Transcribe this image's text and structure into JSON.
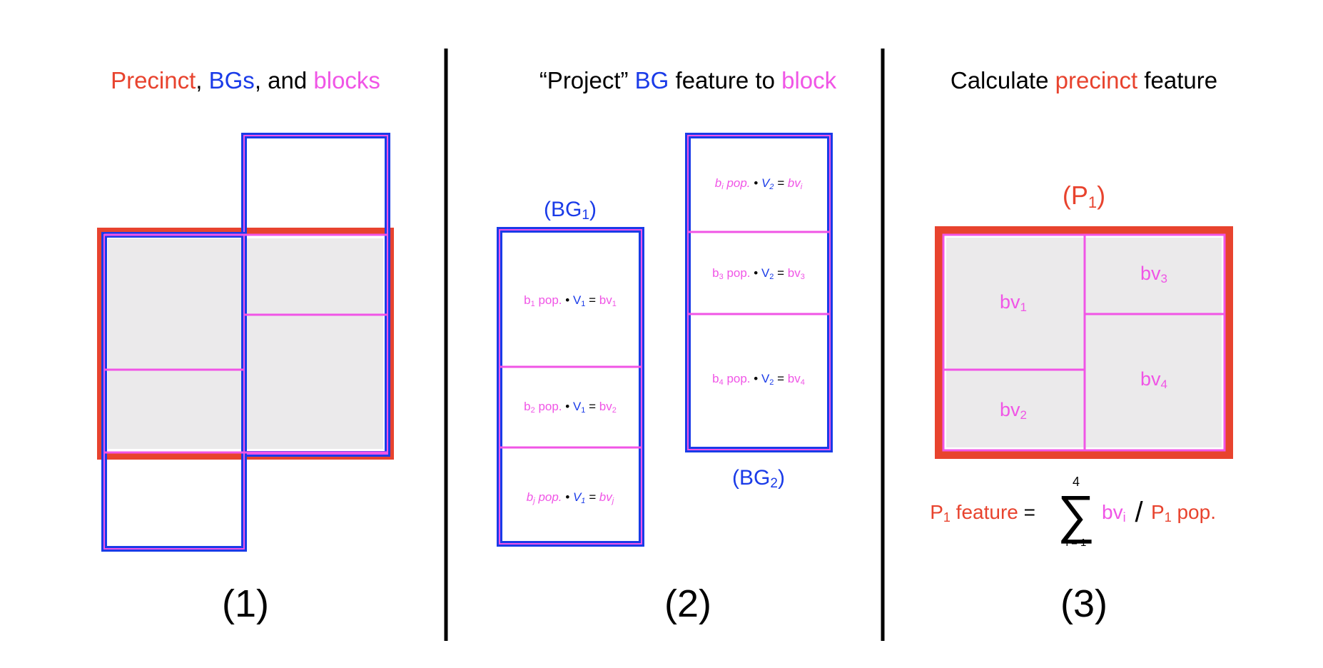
{
  "colors": {
    "precinct": "#E8432E",
    "bg": "#1A3BE8",
    "block": "#F055E6",
    "black": "#000000",
    "fill": "#EBEAEB"
  },
  "panel1": {
    "title": [
      {
        "text": "Precinct",
        "color": "precinct"
      },
      {
        "text": ", ",
        "color": "black"
      },
      {
        "text": "BGs",
        "color": "bg"
      },
      {
        "text": ", and ",
        "color": "black"
      },
      {
        "text": "blocks",
        "color": "block"
      }
    ],
    "number": "(1)"
  },
  "panel2": {
    "title": [
      {
        "text": "“Project” ",
        "color": "black"
      },
      {
        "text": "BG",
        "color": "bg"
      },
      {
        "text": " feature to ",
        "color": "black"
      },
      {
        "text": "block",
        "color": "block"
      }
    ],
    "bg1_label": {
      "base": "(BG",
      "sub": "1",
      "close": ")"
    },
    "bg2_label": {
      "base": "(BG",
      "sub": "2",
      "close": ")"
    },
    "bg1_rows": [
      {
        "b": "b",
        "bsub": "1",
        "pop": " pop.",
        "dot": " • ",
        "v": "V",
        "vsub": "1",
        "eq": " = ",
        "bv": "bv",
        "bvsub": "1",
        "italic": false
      },
      {
        "b": "b",
        "bsub": "2",
        "pop": " pop.",
        "dot": " • ",
        "v": "V",
        "vsub": "1",
        "eq": " = ",
        "bv": "bv",
        "bvsub": "2",
        "italic": false
      },
      {
        "b": "b",
        "bsub": "j",
        "pop": " pop.",
        "dot": " • ",
        "v": "V",
        "vsub": "1",
        "eq": " = ",
        "bv": "bv",
        "bvsub": "j",
        "italic": true
      }
    ],
    "bg2_rows": [
      {
        "b": "b",
        "bsub": "i",
        "pop": " pop.",
        "dot": " • ",
        "v": "V",
        "vsub": "2",
        "eq": " = ",
        "bv": "bv",
        "bvsub": "i",
        "italic": true
      },
      {
        "b": "b",
        "bsub": "3",
        "pop": " pop.",
        "dot": " • ",
        "v": "V",
        "vsub": "2",
        "eq": " = ",
        "bv": "bv",
        "bvsub": "3",
        "italic": false
      },
      {
        "b": "b",
        "bsub": "4",
        "pop": " pop.",
        "dot": " • ",
        "v": "V",
        "vsub": "2",
        "eq": " = ",
        "bv": "bv",
        "bvsub": "4",
        "italic": false
      }
    ],
    "number": "(2)"
  },
  "panel3": {
    "title": [
      {
        "text": "Calculate ",
        "color": "black"
      },
      {
        "text": "precinct",
        "color": "precinct"
      },
      {
        "text": " feature",
        "color": "black"
      }
    ],
    "p1_label": {
      "base": "(P",
      "sub": "1",
      "close": ")"
    },
    "cells": [
      {
        "base": "bv",
        "sub": "1"
      },
      {
        "base": "bv",
        "sub": "2"
      },
      {
        "base": "bv",
        "sub": "3"
      },
      {
        "base": "bv",
        "sub": "4"
      }
    ],
    "formula": {
      "lhs_base": "P",
      "lhs_sub": "1",
      "lhs_text": " feature",
      "equals": " =",
      "sum_symbol": "∑",
      "upper": "4",
      "lower": "i = 1",
      "term_base": "bv",
      "term_sub": "i",
      "slash": "/",
      "rhs_base": "P",
      "rhs_sub": "1",
      "rhs_text": " pop."
    },
    "number": "(3)"
  }
}
